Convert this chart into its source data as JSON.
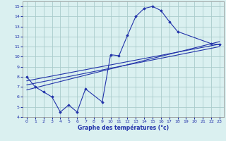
{
  "xlabel": "Graphe des températures (°c)",
  "bg_color": "#daf0f0",
  "grid_color": "#aacccc",
  "line_color": "#2233aa",
  "xlim": [
    -0.5,
    23.5
  ],
  "ylim": [
    4,
    15.5
  ],
  "xticks": [
    0,
    1,
    2,
    3,
    4,
    5,
    6,
    7,
    8,
    9,
    10,
    11,
    12,
    13,
    14,
    15,
    16,
    17,
    18,
    19,
    20,
    21,
    22,
    23
  ],
  "yticks": [
    4,
    5,
    6,
    7,
    8,
    9,
    10,
    11,
    12,
    13,
    14,
    15
  ],
  "main_x": [
    0,
    1,
    2,
    3,
    4,
    5,
    6,
    7,
    9,
    10,
    11,
    12,
    13,
    14,
    15,
    16,
    17,
    18,
    22,
    23
  ],
  "main_y": [
    8.0,
    7.0,
    6.5,
    6.0,
    4.5,
    5.2,
    4.5,
    6.8,
    5.5,
    10.2,
    10.1,
    12.1,
    14.0,
    14.8,
    15.0,
    14.6,
    13.5,
    12.5,
    11.3,
    11.2
  ],
  "line1_x": [
    0,
    23
  ],
  "line1_y": [
    7.6,
    11.25
  ],
  "line2_x": [
    0,
    23
  ],
  "line2_y": [
    7.2,
    11.0
  ],
  "line3_x": [
    0,
    23
  ],
  "line3_y": [
    6.7,
    11.5
  ]
}
